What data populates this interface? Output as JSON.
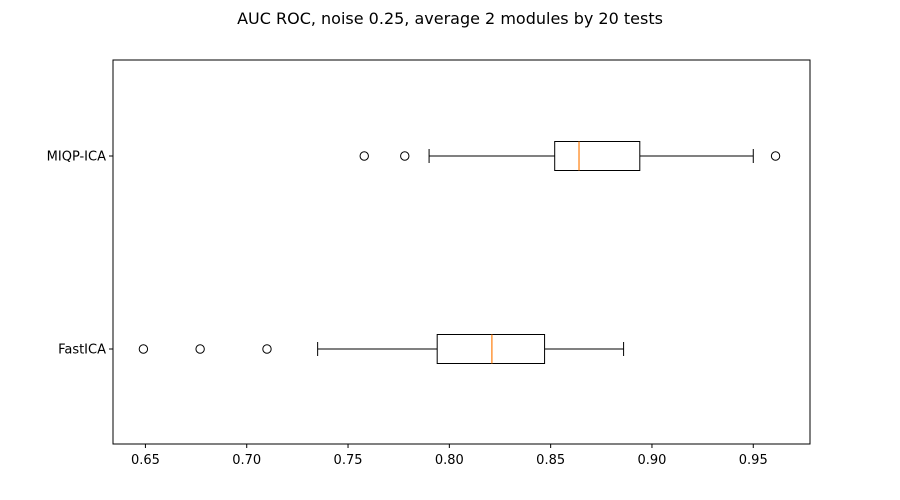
{
  "chart_data": {
    "type": "boxplot",
    "orientation": "horizontal",
    "title": "AUC ROC, noise 0.25, average 2 modules by 20 tests",
    "xlabel": "",
    "ylabel": "",
    "xlim": [
      0.634,
      0.978
    ],
    "xticks": [
      0.65,
      0.7,
      0.75,
      0.8,
      0.85,
      0.9,
      0.95
    ],
    "xtick_labels": [
      "0.65",
      "0.70",
      "0.75",
      "0.80",
      "0.85",
      "0.90",
      "0.95"
    ],
    "grid": false,
    "legend": "none",
    "colors": {
      "box": "#000000",
      "median": "#ff7f0e"
    },
    "series": [
      {
        "name": "FastICA",
        "whisker_low": 0.735,
        "q1": 0.794,
        "median": 0.821,
        "q3": 0.847,
        "whisker_high": 0.886,
        "outliers": [
          0.649,
          0.677,
          0.71
        ]
      },
      {
        "name": "MIQP-ICA",
        "whisker_low": 0.79,
        "q1": 0.852,
        "median": 0.864,
        "q3": 0.894,
        "whisker_high": 0.95,
        "outliers": [
          0.758,
          0.778,
          0.961
        ]
      }
    ]
  }
}
